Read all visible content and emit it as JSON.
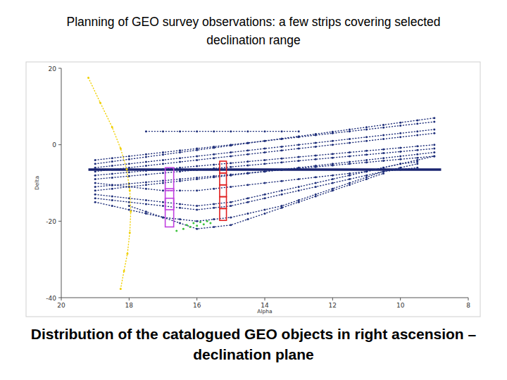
{
  "chart_data": {
    "type": "scatter",
    "title": "Planning of GEO survey observations: a few strips covering selected declination range",
    "caption": "Distribution of the catalogued GEO objects in right ascension – declination plane",
    "x_label": "Alpha",
    "y_label": "Delta",
    "xlim": [
      20,
      8
    ],
    "ylim": [
      -40,
      20
    ],
    "xticks": [
      20,
      18,
      16,
      14,
      12,
      10,
      8
    ],
    "yticks": [
      -40,
      -20,
      0,
      20
    ],
    "grid": false,
    "series": [
      {
        "color": "#1a2470",
        "line_style": "solid",
        "marker": "none",
        "x": [
          19.2,
          8.8
        ],
        "values": [
          -6.5,
          -6.5
        ]
      },
      {
        "color": "#1f2f7a",
        "line_style": "dotted",
        "marker": "dot",
        "x": [
          19,
          18.5,
          18,
          17.5,
          17,
          16.5,
          16,
          15.5,
          15,
          14.5,
          14,
          13.5,
          13,
          12.5,
          12,
          11.5,
          11,
          10.5,
          10,
          9.5,
          9
        ],
        "values": [
          -5,
          -4.4,
          -3.8,
          -3.2,
          -2.6,
          -2,
          -1.4,
          -0.8,
          -0.2,
          0.4,
          1,
          1.6,
          2.2,
          2.8,
          3.4,
          4,
          4.6,
          5.2,
          5.8,
          6.4,
          7
        ]
      },
      {
        "color": "#1f2f7a",
        "line_style": "dotted",
        "marker": "dot",
        "x": [
          19,
          18.5,
          18,
          17.5,
          17,
          16.5,
          16,
          15.5,
          15,
          14.5,
          14,
          13.5,
          13,
          12.5,
          12,
          11.5,
          11,
          10.5,
          10,
          9.5,
          9
        ],
        "values": [
          -6,
          -5.5,
          -5,
          -4.5,
          -4,
          -3.5,
          -3,
          -2.5,
          -2,
          -1.5,
          -1,
          -0.5,
          0,
          0.5,
          1,
          1.5,
          2,
          2.5,
          3,
          3.5,
          4
        ]
      },
      {
        "color": "#1f2f7a",
        "line_style": "dotted",
        "marker": "dot",
        "x": [
          19,
          18.5,
          18,
          17.5,
          17,
          16.5,
          16,
          15.5,
          15,
          14.5,
          14,
          13.5,
          13,
          12.5,
          12,
          11.5,
          11,
          10.5,
          10,
          9.5,
          9
        ],
        "values": [
          -7,
          -6.5,
          -6,
          -5.5,
          -5,
          -4.5,
          -4,
          -3.5,
          -3,
          -2.5,
          -2,
          -1.5,
          -1,
          -0.5,
          0,
          0.5,
          1,
          1.5,
          2,
          2.5,
          3
        ]
      },
      {
        "color": "#1f2f7a",
        "line_style": "dotted",
        "marker": "dot",
        "x": [
          19,
          18.5,
          18,
          17.5,
          17,
          16.5,
          16,
          15.5,
          15,
          14.5,
          14,
          13.5,
          13,
          12.5,
          12,
          11.5,
          11,
          10.5,
          10,
          9.5,
          9
        ],
        "values": [
          -8,
          -7.6,
          -7.2,
          -6.8,
          -6.4,
          -6,
          -5.6,
          -5.2,
          -4.8,
          -4.4,
          -4,
          -3.6,
          -3.2,
          -2.8,
          -2.4,
          -2,
          -1.6,
          -1.2,
          -0.8,
          -0.4,
          0
        ]
      },
      {
        "color": "#1f2f7a",
        "line_style": "dotted",
        "marker": "dot",
        "x": [
          19,
          18.5,
          18,
          17.5,
          17,
          16.5,
          16,
          15.5,
          15,
          14.5,
          14,
          13.5,
          13,
          12.5,
          12,
          11.5,
          11,
          10.5,
          10,
          9.5,
          9
        ],
        "values": [
          -9,
          -8.6,
          -8.2,
          -7.8,
          -7.4,
          -7,
          -6.6,
          -6.2,
          -5.8,
          -5.4,
          -5,
          -4.6,
          -4.2,
          -3.8,
          -3.4,
          -3,
          -2.6,
          -2.2,
          -1.8,
          -1.4,
          -1
        ]
      },
      {
        "color": "#1f2f7a",
        "line_style": "dotted",
        "marker": "dot",
        "x": [
          19,
          18.5,
          18,
          17.5,
          17,
          16.5,
          16,
          15.5,
          15,
          14.5,
          14,
          13.5,
          13,
          12.5,
          12,
          11.5,
          11,
          10.5,
          10,
          9.5,
          9
        ],
        "values": [
          -11,
          -10.6,
          -10.2,
          -9.8,
          -9.4,
          -9,
          -8.6,
          -8.2,
          -7.8,
          -7.4,
          -7,
          -6.6,
          -6.2,
          -5.8,
          -5.4,
          -5,
          -4.6,
          -4.2,
          -3.8,
          -3.4,
          -3
        ]
      },
      {
        "color": "#1f2f7a",
        "line_style": "dotted",
        "marker": "dot",
        "x": [
          19,
          18.5,
          18,
          17.5,
          17,
          16.5,
          16,
          15.5,
          15,
          14.5,
          14,
          13.5,
          13,
          12.5,
          12,
          11.5,
          11,
          10.5,
          10,
          9.5,
          9
        ],
        "values": [
          -12,
          -11.5,
          -11,
          -10.5,
          -10,
          -9.5,
          -9,
          -8.5,
          -8,
          -7.5,
          -7,
          -6.5,
          -6,
          -5.5,
          -5,
          -4.5,
          -4,
          -3.5,
          -3,
          -2.5,
          -2
        ]
      },
      {
        "color": "#1f2f7a",
        "line_style": "dotted",
        "marker": "dot",
        "x": [
          19,
          18.5,
          18,
          17.5,
          17,
          16.5,
          16,
          15.5,
          15,
          14.5,
          14,
          13.5,
          13,
          12.5,
          12,
          11.5,
          11,
          10.5,
          10,
          9.5,
          9
        ],
        "values": [
          -4,
          -3.5,
          -3,
          -2.5,
          -2,
          -1.5,
          -1,
          -0.5,
          0,
          0.5,
          1,
          1.5,
          2,
          2.5,
          3,
          3.5,
          4,
          4.5,
          5,
          5.5,
          6
        ]
      },
      {
        "color": "#1f2f7a",
        "line_style": "dotted",
        "marker": "dot",
        "x": [
          19,
          18.5,
          18,
          17.5,
          17,
          16.5,
          16,
          15.5,
          15,
          14.5,
          14,
          13.5,
          13,
          12.5,
          12,
          11.5,
          11,
          10.5,
          10,
          9.5,
          9
        ],
        "values": [
          -15,
          -16,
          -17,
          -18,
          -19,
          -19.5,
          -20,
          -19.5,
          -19,
          -18,
          -17,
          -16,
          -14.5,
          -13,
          -11.5,
          -10,
          -8.5,
          -7,
          -6,
          -5,
          null
        ]
      },
      {
        "color": "#1f2f7a",
        "line_style": "dotted",
        "marker": "dot",
        "x": [
          19,
          18.5,
          18,
          17.5,
          17,
          16.5,
          16,
          15.5,
          15,
          14.5,
          14,
          13.5,
          13,
          12.5,
          12,
          11.5,
          11,
          10.5,
          10,
          9.5,
          9
        ],
        "values": [
          -13,
          -13.5,
          -14,
          -14.5,
          -15,
          -15.5,
          -16,
          -15.5,
          -15,
          -14,
          -13,
          -12,
          -11,
          -10,
          -9,
          -8,
          -7,
          -6,
          -5,
          -4.5,
          null
        ]
      },
      {
        "color": "#1f2f7a",
        "line_style": "dotted",
        "marker": "dot",
        "x": [
          19,
          18.5,
          18,
          17.5,
          17,
          16.5,
          16,
          15.5,
          15,
          14.5,
          14,
          13.5,
          13,
          12.5,
          12,
          11.5,
          11,
          10.5,
          10,
          9.5,
          9
        ],
        "values": [
          null,
          null,
          -16,
          -17.5,
          -19,
          -20.5,
          -22,
          -21.5,
          -21,
          -19.5,
          -18,
          -16.5,
          -15,
          -13.5,
          -12,
          -10.5,
          -9,
          -7.5,
          null,
          null,
          null
        ]
      },
      {
        "color": "#1f2f7a",
        "line_style": "dotted",
        "marker": "dot",
        "x": [
          19,
          18.5,
          18,
          17.5,
          17,
          16.5,
          16,
          15.5,
          15,
          14.5,
          14,
          13.5,
          13,
          12.5,
          12,
          11.5,
          11,
          10.5,
          10,
          9.5,
          9
        ],
        "values": [
          -10,
          -10.5,
          -11,
          -11.5,
          -12,
          -12,
          -12,
          -11.5,
          -11,
          -10.5,
          -10,
          -9.5,
          -9,
          -8.5,
          -8,
          -7.5,
          -7,
          -6,
          -5,
          -4,
          -3
        ]
      },
      {
        "color": "#1f2f7a",
        "line_style": "dotted",
        "marker": "dot",
        "x": [
          19,
          18.5,
          18,
          17.5,
          17,
          16.5,
          16,
          15.5,
          15,
          14.5,
          14,
          13.5,
          13,
          12.5,
          12,
          11.5,
          11,
          10.5,
          10,
          9.5,
          9
        ],
        "values": [
          null,
          null,
          null,
          3.5,
          3.5,
          3.5,
          3.5,
          3.5,
          3.5,
          3.5,
          3.5,
          3.5,
          3.5,
          null,
          null,
          null,
          null,
          null,
          null,
          null,
          null
        ]
      },
      {
        "color": "#1f2f7a",
        "line_style": "dotted",
        "marker": "dot",
        "x": [
          19,
          18.5,
          18,
          17.5,
          17,
          16.5,
          16,
          15.5,
          15,
          14.5,
          14,
          13.5,
          13,
          12.5,
          12,
          11.5,
          11,
          10.5,
          10,
          9.5,
          9
        ],
        "values": [
          -14,
          -14.5,
          -15,
          -15.5,
          -16,
          -16.5,
          -17,
          -16.5,
          -16,
          -15,
          -14,
          -13,
          -12,
          -11,
          -10,
          -9,
          -8,
          -7,
          -6.5,
          -6,
          null
        ]
      },
      {
        "color": "#3cc23c",
        "line_style": "none",
        "marker": "dot",
        "x": [
          16.6,
          16.4,
          16.2,
          16.0,
          15.8,
          15.6,
          16.3,
          16.1,
          15.9,
          15.7
        ],
        "values": [
          -22.5,
          -22,
          -21.5,
          -21.2,
          -20.8,
          -20.5,
          -21,
          -20.5,
          -20.2,
          -20
        ]
      },
      {
        "color": "#f0d000",
        "line_style": "dotted",
        "marker": "dot",
        "x": [
          19.2,
          18.85,
          18.5,
          18.25,
          18.07,
          17.98,
          17.95,
          17.98,
          18.05,
          18.15,
          18.25
        ],
        "values": [
          17.5,
          11,
          4.6,
          -1,
          -6.4,
          -12,
          -17.5,
          -23,
          -28.5,
          -33,
          -37.7
        ]
      }
    ],
    "fields": [
      {
        "color": "#e02020",
        "ra": 15.23,
        "width": 0.2,
        "dec": [
          [
            -4.3,
            -7.4
          ],
          [
            -7.4,
            -10.5
          ],
          [
            -10.5,
            -13.6
          ],
          [
            -13.6,
            -16.7
          ],
          [
            -16.7,
            -19.8
          ]
        ]
      },
      {
        "color": "#c040e0",
        "ra": 16.81,
        "width": 0.25,
        "dec": [
          [
            -6,
            -12
          ],
          [
            -11.5,
            -17
          ],
          [
            -14,
            -21.5
          ]
        ]
      }
    ]
  }
}
